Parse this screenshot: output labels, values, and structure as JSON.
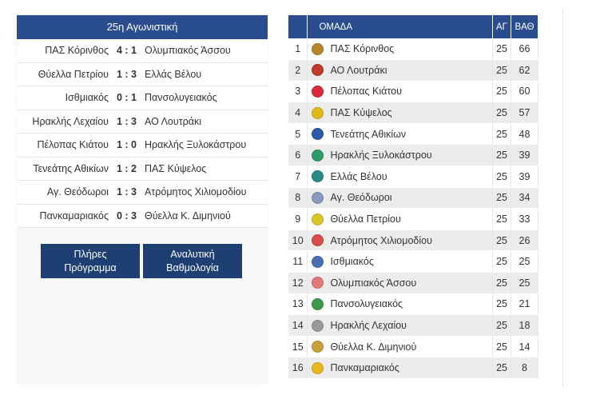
{
  "round": {
    "title": "25η Αγωνιστική"
  },
  "results": [
    {
      "home": "ΠΑΣ Κόρινθος",
      "score": "4 : 1",
      "away": "Ολυμπιακός Άσσου"
    },
    {
      "home": "Θύελλα Πετρίου",
      "score": "1 : 3",
      "away": "Ελλάς Βέλου"
    },
    {
      "home": "Ισθμιακός",
      "score": "0 : 1",
      "away": "Πανσολυγειακός"
    },
    {
      "home": "Ηρακλής Λεχαίου",
      "score": "1 : 3",
      "away": "ΑΟ Λουτράκι"
    },
    {
      "home": "Πέλοπας Κιάτου",
      "score": "1 : 0",
      "away": "Ηρακλής Ξυλοκάστρου"
    },
    {
      "home": "Τενεάτης Αθικίων",
      "score": "1 : 2",
      "away": "ΠΑΣ Κύψελος"
    },
    {
      "home": "Αγ. Θεόδωροι",
      "score": "1 : 3",
      "away": "Ατρόμητος Χιλιομοδίου"
    },
    {
      "home": "Πανκαμαριακός",
      "score": "0 : 3",
      "away": "Θύελλα Κ. Διμηνιού"
    }
  ],
  "buttons": {
    "schedule": {
      "line1": "Πλήρες",
      "line2": "Πρόγραμμα"
    },
    "standings": {
      "line1": "Αναλυτική",
      "line2": "Βαθμολογία"
    }
  },
  "table": {
    "headers": {
      "pos": "",
      "team": "ΟΜΑΔΑ",
      "gp": "ΑΓ",
      "pts": "ΒΑΘ"
    },
    "rows": [
      {
        "pos": "1",
        "team": "ΠΑΣ Κόρινθος",
        "gp": "25",
        "pts": "66",
        "crest": "#b8862b"
      },
      {
        "pos": "2",
        "team": "ΑΟ Λουτράκι",
        "gp": "25",
        "pts": "62",
        "crest": "#c0392b"
      },
      {
        "pos": "3",
        "team": "Πέλοπας Κιάτου",
        "gp": "25",
        "pts": "60",
        "crest": "#d62c3a"
      },
      {
        "pos": "4",
        "team": "ΠΑΣ Κύψελος",
        "gp": "25",
        "pts": "57",
        "crest": "#e0b81e"
      },
      {
        "pos": "5",
        "team": "Τενεάτης Αθικίων",
        "gp": "25",
        "pts": "48",
        "crest": "#2b5aa8"
      },
      {
        "pos": "6",
        "team": "Ηρακλής Ξυλοκάστρου",
        "gp": "25",
        "pts": "39",
        "crest": "#2e9b6a"
      },
      {
        "pos": "7",
        "team": "Ελλάς Βέλου",
        "gp": "25",
        "pts": "39",
        "crest": "#2a8a86"
      },
      {
        "pos": "8",
        "team": "Αγ. Θεόδωροι",
        "gp": "25",
        "pts": "34",
        "crest": "#8a9bbf"
      },
      {
        "pos": "9",
        "team": "Θύελλα Πετρίου",
        "gp": "25",
        "pts": "33",
        "crest": "#d9c628"
      },
      {
        "pos": "10",
        "team": "Ατρόμητος Χιλιομοδίου",
        "gp": "25",
        "pts": "26",
        "crest": "#d94a4a"
      },
      {
        "pos": "11",
        "team": "Ισθμιακός",
        "gp": "25",
        "pts": "25",
        "crest": "#4a6fb0"
      },
      {
        "pos": "12",
        "team": "Ολυμπιακός Άσσου",
        "gp": "25",
        "pts": "25",
        "crest": "#e07a7a"
      },
      {
        "pos": "13",
        "team": "Πανσολυγειακός",
        "gp": "25",
        "pts": "21",
        "crest": "#3a9a4a"
      },
      {
        "pos": "14",
        "team": "Ηρακλής Λεχαίου",
        "gp": "25",
        "pts": "18",
        "crest": "#9a9a9a"
      },
      {
        "pos": "15",
        "team": "Θύελλα Κ. Διμηνιού",
        "gp": "25",
        "pts": "14",
        "crest": "#c7a23a"
      },
      {
        "pos": "16",
        "team": "Πανκαμαριακός",
        "gp": "25",
        "pts": "8",
        "crest": "#e8b81e"
      }
    ]
  }
}
